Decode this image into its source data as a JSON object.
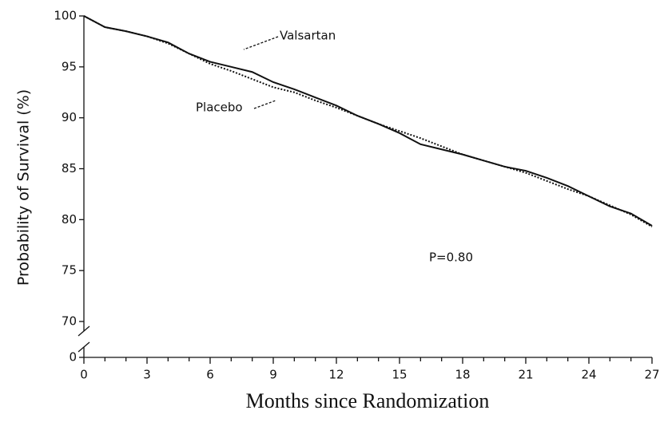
{
  "chart_data": {
    "type": "line",
    "x_label": "Months since Randomization",
    "y_label": "Probability of Survival (%)",
    "x": [
      0,
      1,
      2,
      3,
      4,
      5,
      6,
      7,
      8,
      9,
      10,
      11,
      12,
      13,
      14,
      15,
      16,
      17,
      18,
      19,
      20,
      21,
      22,
      23,
      24,
      25,
      26,
      27
    ],
    "series": [
      {
        "name": "Valsartan",
        "color": "#111111",
        "linestyle": "solid",
        "values": [
          100,
          98.9,
          98.5,
          98,
          97.4,
          96.3,
          95.5,
          95,
          94.5,
          93.5,
          92.8,
          92,
          91.2,
          90.2,
          89.4,
          88.5,
          87.4,
          86.9,
          86.4,
          85.8,
          85.2,
          84.8,
          84.1,
          83.3,
          82.3,
          81.3,
          80.6,
          79.4
        ]
      },
      {
        "name": "Placebo",
        "color": "#111111",
        "linestyle": "dotted",
        "values": [
          100,
          98.9,
          98.5,
          98,
          97.3,
          96.3,
          95.3,
          94.6,
          93.8,
          93,
          92.5,
          91.7,
          91,
          90.2,
          89.4,
          88.7,
          88,
          87.2,
          86.4,
          85.8,
          85.2,
          84.6,
          83.8,
          83,
          82.3,
          81.4,
          80.5,
          79.3
        ]
      }
    ],
    "annotations": [
      "P=0.80"
    ],
    "xlim": [
      0,
      27
    ],
    "xticks": [
      0,
      3,
      6,
      9,
      12,
      15,
      18,
      21,
      24,
      27
    ],
    "xminorticks": [
      1,
      2,
      4,
      5,
      7,
      8,
      10,
      11,
      13,
      14,
      16,
      17,
      19,
      20,
      22,
      23,
      25,
      26
    ],
    "ylim": [
      0,
      100
    ],
    "yticks": [
      0,
      70,
      75,
      80,
      85,
      90,
      95,
      100
    ],
    "y_axis_break": [
      0,
      70
    ]
  }
}
